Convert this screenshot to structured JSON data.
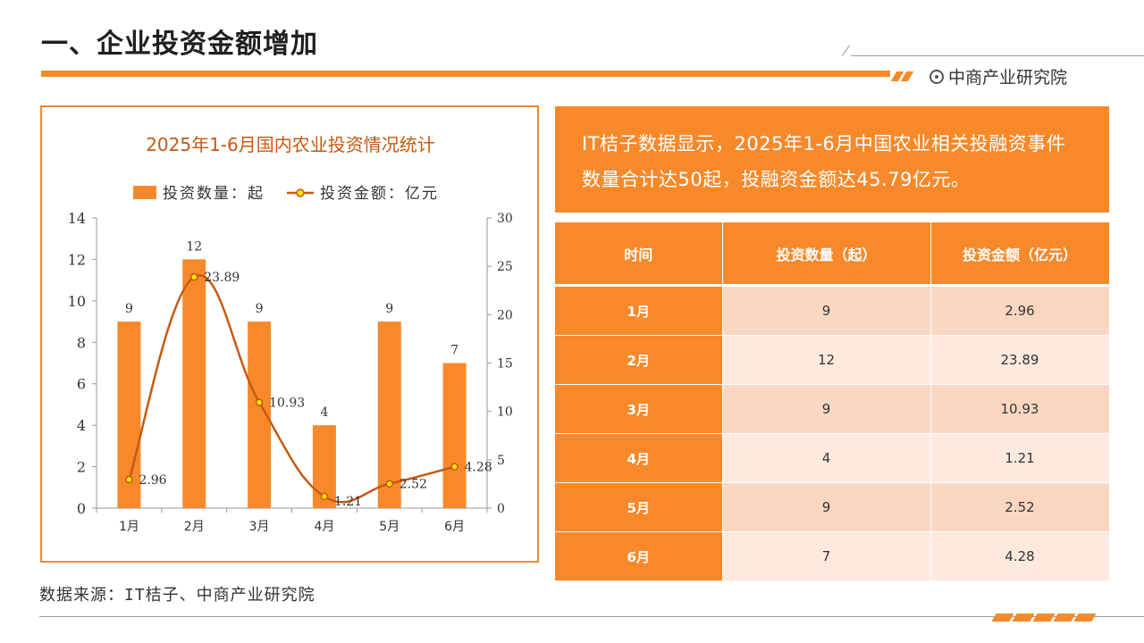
{
  "header": {
    "title": "一、企业投资金额增加",
    "brand": "中商产业研究院"
  },
  "chart_data": {
    "type": "bar",
    "title": "2025年1-6月国内农业投资情况统计",
    "categories": [
      "1月",
      "2月",
      "3月",
      "4月",
      "5月",
      "6月"
    ],
    "series": [
      {
        "name": "投资数量：起",
        "type": "bar",
        "axis": "left",
        "values": [
          9,
          12,
          9,
          4,
          9,
          7
        ]
      },
      {
        "name": "投资金额：亿元",
        "type": "line",
        "axis": "right",
        "values": [
          2.96,
          23.89,
          10.93,
          1.21,
          2.52,
          4.28
        ]
      }
    ],
    "y_left": {
      "min": 0,
      "max": 14,
      "ticks": [
        0,
        2,
        4,
        6,
        8,
        10,
        12,
        14
      ]
    },
    "y_right": {
      "min": 0,
      "max": 30,
      "ticks": [
        0,
        5,
        10,
        15,
        20,
        25,
        30
      ]
    },
    "bar_labels": [
      "9",
      "12",
      "9",
      "4",
      "9",
      "7"
    ],
    "line_labels": [
      "2.96",
      "23.89",
      "10.93",
      "1.21",
      "2.52",
      "4.28"
    ],
    "legend_position": "top",
    "grid": false,
    "colors": {
      "bar": "#f7892b",
      "line": "#c55a11",
      "marker_fill": "#ffe400",
      "title": "#c55a11"
    }
  },
  "summary": {
    "text": "IT桔子数据显示，2025年1-6月中国农业相关投融资事件数量合计达50起，投融资金额达45.79亿元。"
  },
  "table": {
    "headers": [
      "时间",
      "投资数量（起）",
      "投资金额（亿元）"
    ],
    "rows": [
      [
        "1月",
        "9",
        "2.96"
      ],
      [
        "2月",
        "12",
        "23.89"
      ],
      [
        "3月",
        "9",
        "10.93"
      ],
      [
        "4月",
        "4",
        "1.21"
      ],
      [
        "5月",
        "9",
        "2.52"
      ],
      [
        "6月",
        "7",
        "4.28"
      ]
    ]
  },
  "footer": {
    "source": "数据来源：IT桔子、中商产业研究院"
  },
  "colors": {
    "accent": "#f7892b",
    "accent_dark": "#c55a11",
    "row_odd": "#fbd7c2",
    "row_even": "#fde9dd"
  }
}
